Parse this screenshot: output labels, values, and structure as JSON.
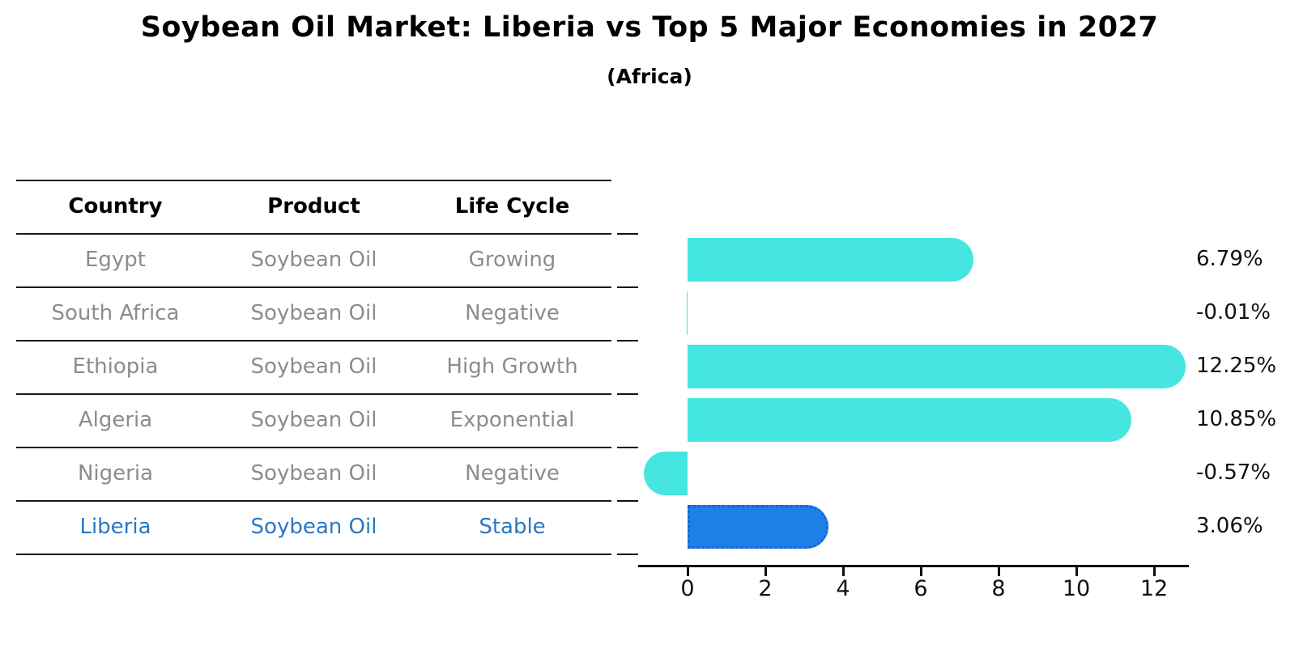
{
  "title": "Soybean Oil Market: Liberia vs Top 5 Major Economies in 2027",
  "subtitle": "(Africa)",
  "table": {
    "headers": {
      "country": "Country",
      "product": "Product",
      "life_cycle": "Life Cycle"
    },
    "rows": [
      {
        "country": "Egypt",
        "product": "Soybean Oil",
        "life_cycle": "Growing",
        "highlight": false
      },
      {
        "country": "South Africa",
        "product": "Soybean Oil",
        "life_cycle": "Negative",
        "highlight": false
      },
      {
        "country": "Ethiopia",
        "product": "Soybean Oil",
        "life_cycle": "High Growth",
        "highlight": false
      },
      {
        "country": "Algeria",
        "product": "Soybean Oil",
        "life_cycle": "Exponential",
        "highlight": false
      },
      {
        "country": "Nigeria",
        "product": "Soybean Oil",
        "life_cycle": "Negative",
        "highlight": false
      },
      {
        "country": "Liberia",
        "product": "Soybean Oil",
        "life_cycle": "Stable",
        "highlight": true
      }
    ]
  },
  "chart_data": {
    "type": "bar",
    "orientation": "horizontal",
    "title": "Soybean Oil Market: Liberia vs Top 5 Major Economies in 2027 (Africa)",
    "categories": [
      "Egypt",
      "South Africa",
      "Ethiopia",
      "Algeria",
      "Nigeria",
      "Liberia"
    ],
    "values": [
      6.79,
      -0.01,
      12.25,
      10.85,
      -0.57,
      3.06
    ],
    "value_labels": [
      "6.79%",
      "-0.01%",
      "12.25%",
      "10.85%",
      "-0.57%",
      "3.06%"
    ],
    "xticks": [
      0,
      2,
      4,
      6,
      8,
      10,
      12
    ],
    "xlim": [
      -1.27,
      12.9
    ],
    "grid": false,
    "legend": "none",
    "highlight_index": 5,
    "bar_color": "#45E6DF",
    "highlight_bar_color": "#1F7FE8",
    "highlight_border_color": "#1565D8"
  },
  "colors": {
    "row_text": "#8C8C8C",
    "highlight_text": "#2878C4",
    "header_text": "#000000",
    "axis": "#111111"
  }
}
